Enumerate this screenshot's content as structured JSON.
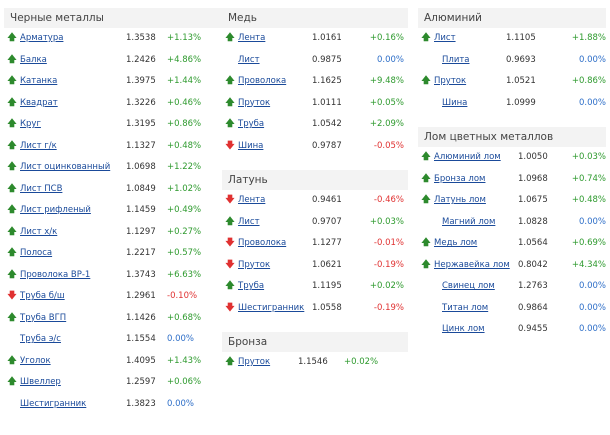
{
  "ferrous": {
    "title": "Черные металлы",
    "items": [
      {
        "dir": "up",
        "name": "Арматура",
        "price": "1.3538",
        "change": "+1.13%"
      },
      {
        "dir": "up",
        "name": "Балка",
        "price": "1.2426",
        "change": "+4.86%"
      },
      {
        "dir": "up",
        "name": "Катанка",
        "price": "1.3975",
        "change": "+1.44%"
      },
      {
        "dir": "up",
        "name": "Квадрат",
        "price": "1.3226",
        "change": "+0.46%"
      },
      {
        "dir": "up",
        "name": "Круг",
        "price": "1.3195",
        "change": "+0.86%"
      },
      {
        "dir": "up",
        "name": "Лист г/к",
        "price": "1.1327",
        "change": "+0.48%"
      },
      {
        "dir": "up",
        "name": "Лист оцинкованный",
        "price": "1.0698",
        "change": "+1.22%"
      },
      {
        "dir": "up",
        "name": "Лист ПСВ",
        "price": "1.0849",
        "change": "+1.02%"
      },
      {
        "dir": "up",
        "name": "Лист рифленый",
        "price": "1.1459",
        "change": "+0.49%"
      },
      {
        "dir": "up",
        "name": "Лист х/к",
        "price": "1.1297",
        "change": "+0.27%"
      },
      {
        "dir": "up",
        "name": "Полоса",
        "price": "1.2217",
        "change": "+0.57%"
      },
      {
        "dir": "up",
        "name": "Проволока ВР-1",
        "price": "1.3743",
        "change": "+6.63%"
      },
      {
        "dir": "down",
        "name": "Труба б/ш",
        "price": "1.2961",
        "change": "-0.10%"
      },
      {
        "dir": "up",
        "name": "Труба ВГП",
        "price": "1.1426",
        "change": "+0.68%"
      },
      {
        "dir": "none",
        "name": "Труба э/с",
        "price": "1.1554",
        "change": "0.00%"
      },
      {
        "dir": "up",
        "name": "Уголок",
        "price": "1.4095",
        "change": "+1.43%"
      },
      {
        "dir": "up",
        "name": "Швеллер",
        "price": "1.2597",
        "change": "+0.06%"
      },
      {
        "dir": "none",
        "name": "Шестигранник",
        "price": "1.3823",
        "change": "0.00%"
      }
    ]
  },
  "copper": {
    "title": "Медь",
    "items": [
      {
        "dir": "up",
        "name": "Лента",
        "price": "1.0161",
        "change": "+0.16%"
      },
      {
        "dir": "none",
        "name": "Лист",
        "price": "0.9875",
        "change": "0.00%"
      },
      {
        "dir": "up",
        "name": "Проволока",
        "price": "1.1625",
        "change": "+9.48%"
      },
      {
        "dir": "up",
        "name": "Пруток",
        "price": "1.0111",
        "change": "+0.05%"
      },
      {
        "dir": "up",
        "name": "Труба",
        "price": "1.0542",
        "change": "+2.09%"
      },
      {
        "dir": "down",
        "name": "Шина",
        "price": "0.9787",
        "change": "-0.05%"
      }
    ]
  },
  "brass": {
    "title": "Латунь",
    "items": [
      {
        "dir": "down",
        "name": "Лента",
        "price": "0.9461",
        "change": "-0.46%"
      },
      {
        "dir": "up",
        "name": "Лист",
        "price": "0.9707",
        "change": "+0.03%"
      },
      {
        "dir": "down",
        "name": "Проволока",
        "price": "1.1277",
        "change": "-0.01%"
      },
      {
        "dir": "down",
        "name": "Пруток",
        "price": "1.0621",
        "change": "-0.19%"
      },
      {
        "dir": "up",
        "name": "Труба",
        "price": "1.1195",
        "change": "+0.02%"
      },
      {
        "dir": "down",
        "name": "Шестигранник",
        "price": "1.0558",
        "change": "-0.19%"
      }
    ]
  },
  "bronze": {
    "title": "Бронза",
    "items": [
      {
        "dir": "up",
        "name": "Пруток",
        "price": "1.1546",
        "change": "+0.02%"
      }
    ]
  },
  "aluminium": {
    "title": "Алюминий",
    "items": [
      {
        "dir": "up",
        "name": "Лист",
        "price": "1.1105",
        "change": "+1.88%"
      },
      {
        "dir": "none",
        "name": "Плита",
        "price": "0.9693",
        "change": "0.00%"
      },
      {
        "dir": "up",
        "name": "Пруток",
        "price": "1.0521",
        "change": "+0.86%"
      },
      {
        "dir": "none",
        "name": "Шина",
        "price": "1.0999",
        "change": "0.00%"
      }
    ]
  },
  "scrap": {
    "title": "Лом цветных металлов",
    "items": [
      {
        "dir": "up",
        "name": "Алюминий лом",
        "price": "1.0050",
        "change": "+0.03%"
      },
      {
        "dir": "up",
        "name": "Бронза лом",
        "price": "1.0968",
        "change": "+0.74%"
      },
      {
        "dir": "up",
        "name": "Латунь лом",
        "price": "1.0675",
        "change": "+0.48%"
      },
      {
        "dir": "none",
        "name": "Магний лом",
        "price": "1.0828",
        "change": "0.00%"
      },
      {
        "dir": "up",
        "name": "Медь лом",
        "price": "1.0564",
        "change": "+0.69%"
      },
      {
        "dir": "up",
        "name": "Нержавейка лом",
        "price": "0.8042",
        "change": "+4.34%"
      },
      {
        "dir": "none",
        "name": "Свинец лом",
        "price": "1.2763",
        "change": "0.00%"
      },
      {
        "dir": "none",
        "name": "Титан лом",
        "price": "0.9864",
        "change": "0.00%"
      },
      {
        "dir": "none",
        "name": "Цинк лом",
        "price": "0.9455",
        "change": "0.00%"
      }
    ]
  },
  "arrows": {
    "up": "🡅",
    "down": "🡇"
  },
  "colors": {
    "up": "#2d8a2d",
    "down": "#e03131",
    "zero": "#2d6ec8",
    "link": "#1a4a9a"
  }
}
